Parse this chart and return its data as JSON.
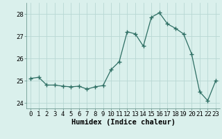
{
  "x": [
    0,
    1,
    2,
    3,
    4,
    5,
    6,
    7,
    8,
    9,
    10,
    11,
    12,
    13,
    14,
    15,
    16,
    17,
    18,
    19,
    20,
    21,
    22,
    23
  ],
  "y": [
    25.1,
    25.15,
    24.8,
    24.8,
    24.75,
    24.72,
    24.75,
    24.62,
    24.72,
    24.78,
    25.5,
    25.85,
    27.2,
    27.1,
    26.55,
    27.85,
    28.05,
    27.55,
    27.35,
    27.1,
    26.2,
    24.5,
    24.1,
    25.0
  ],
  "line_color": "#2d6e63",
  "marker": "+",
  "marker_size": 4,
  "marker_lw": 1.0,
  "bg_color": "#daf0ec",
  "grid_color": "#b8d8d4",
  "xlabel": "Humidex (Indice chaleur)",
  "xlim": [
    -0.5,
    23.5
  ],
  "ylim": [
    23.75,
    28.5
  ],
  "yticks": [
    24,
    25,
    26,
    27,
    28
  ],
  "xticks": [
    0,
    1,
    2,
    3,
    4,
    5,
    6,
    7,
    8,
    9,
    10,
    11,
    12,
    13,
    14,
    15,
    16,
    17,
    18,
    19,
    20,
    21,
    22,
    23
  ],
  "xlabel_fontsize": 7.5,
  "tick_fontsize": 6.5
}
